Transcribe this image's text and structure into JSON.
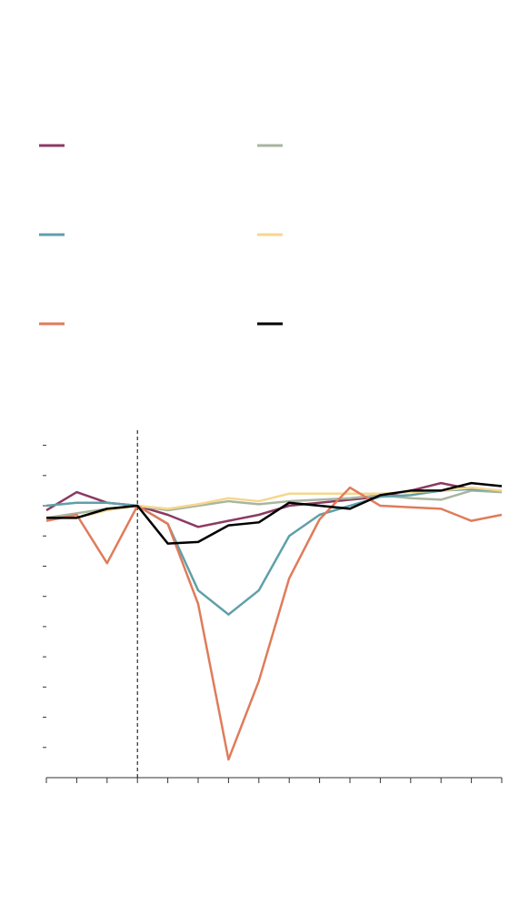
{
  "chart_data": {
    "type": "line",
    "categories": [
      null,
      null,
      null,
      null,
      null,
      null,
      null,
      null,
      null,
      null,
      null,
      null,
      null,
      null,
      null,
      null
    ],
    "reference_index": 3,
    "ylim": [
      10,
      125
    ],
    "yticks": [
      20,
      30,
      40,
      50,
      60,
      70,
      80,
      90,
      100,
      110,
      120
    ],
    "series": [
      {
        "color": "#8b3a62",
        "values": [
          98.5,
          104.5,
          101,
          100,
          97,
          93,
          95,
          97,
          100,
          101,
          102,
          103,
          105,
          107.5,
          105.5,
          null
        ]
      },
      {
        "color": "#a8b5a0",
        "values": [
          96,
          97.5,
          99,
          100,
          98.5,
          100,
          101.5,
          100.5,
          101.5,
          102,
          102.5,
          103.5,
          102.5,
          102,
          105,
          104.5
        ]
      },
      {
        "color": "#5fa0a8",
        "values": [
          100,
          101,
          101,
          100,
          94,
          72,
          64,
          72,
          90,
          97,
          100,
          103,
          103.5,
          105,
          105.5,
          105
        ]
      },
      {
        "color": "#f5d78e",
        "values": [
          96,
          96,
          98.5,
          100,
          99,
          100.5,
          102.5,
          101.5,
          104,
          104,
          104,
          104,
          104.5,
          105,
          106,
          105
        ]
      },
      {
        "color": "#e07b5a",
        "values": [
          95,
          97,
          81,
          100,
          94,
          67.5,
          16,
          42,
          76,
          95.5,
          106,
          100,
          99.5,
          99,
          95,
          97
        ]
      },
      {
        "color": "#000000",
        "values": [
          96,
          96,
          99,
          100,
          87.5,
          88,
          93.5,
          94.5,
          101,
          100,
          99,
          103.5,
          105,
          105,
          107.5,
          106.5
        ]
      }
    ]
  }
}
